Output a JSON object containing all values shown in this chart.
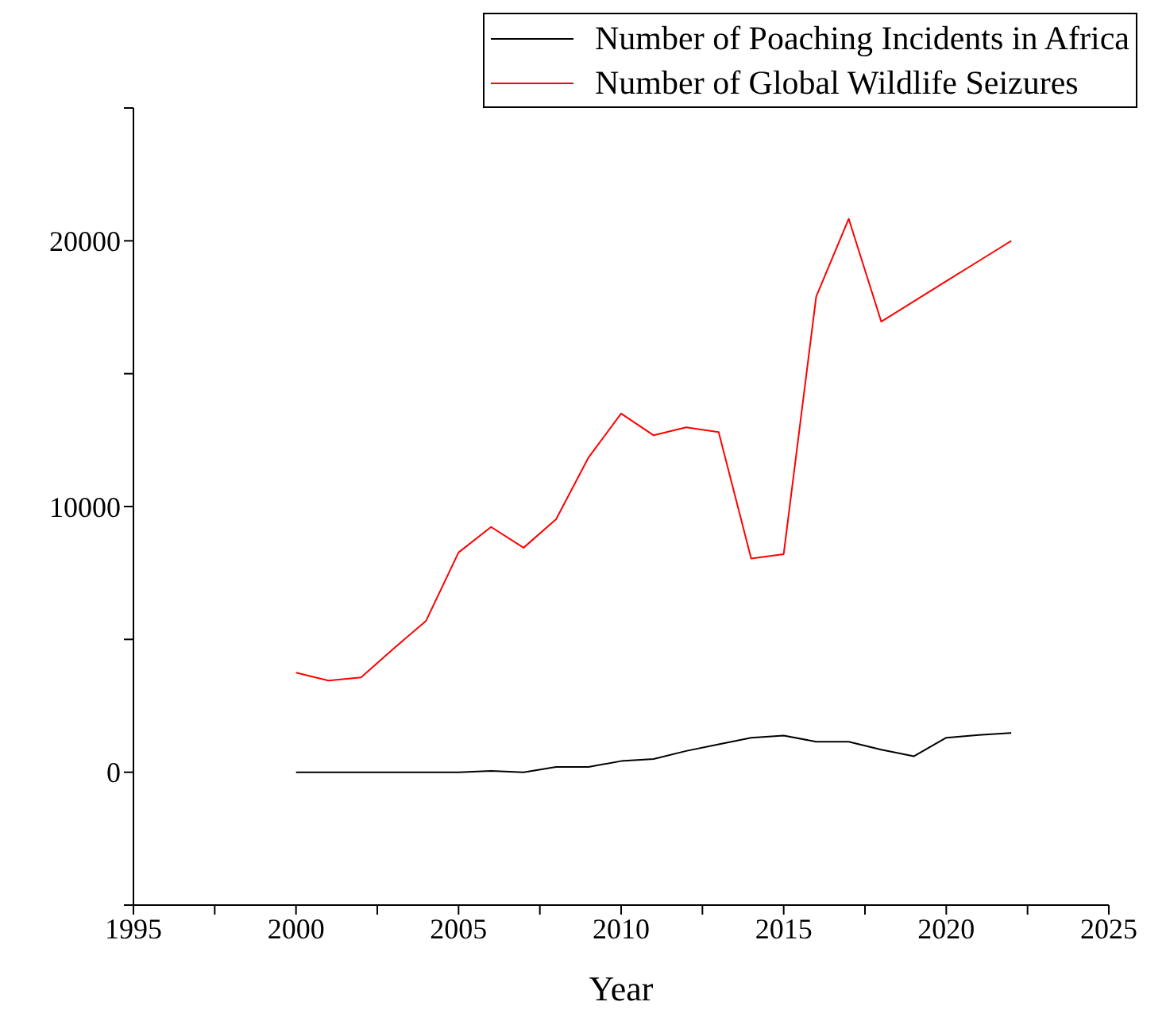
{
  "chart_data": {
    "type": "line",
    "xlabel": "Year",
    "x": [
      2000,
      2001,
      2002,
      2003,
      2004,
      2005,
      2006,
      2007,
      2008,
      2009,
      2010,
      2011,
      2012,
      2013,
      2014,
      2015,
      2016,
      2017,
      2018,
      2019,
      2020,
      2021,
      2022
    ],
    "series": [
      {
        "name": "Number of Poaching Incidents in Africa",
        "color": "#000000",
        "values": [
          0,
          0,
          0,
          0,
          0,
          0,
          50,
          0,
          200,
          200,
          420,
          500,
          800,
          1050,
          1300,
          1380,
          1150,
          1150,
          850,
          600,
          1300,
          1400,
          1480
        ]
      },
      {
        "name": "Number of Global Wildlife Seizures",
        "color": "#ff0000",
        "values": [
          3750,
          3450,
          3570,
          4650,
          5700,
          8270,
          9230,
          8450,
          9520,
          11850,
          13500,
          12680,
          12980,
          12800,
          8040,
          8210,
          17900,
          20830,
          16960,
          17720,
          18480,
          19240,
          20000
        ]
      }
    ],
    "xlim": [
      1995,
      2025
    ],
    "xticks": [
      1995,
      {
        "value": 1997.5,
        "label": null
      },
      2000,
      {
        "value": 2002.5,
        "label": null
      },
      2005,
      {
        "value": 2007.5,
        "label": null
      },
      2010,
      {
        "value": 2012.5,
        "label": null
      },
      2015,
      {
        "value": 2017.5,
        "label": null
      },
      2020,
      {
        "value": 2022.5,
        "label": null
      },
      2025
    ],
    "ylim": [
      -5000,
      25000
    ],
    "yticks": [
      {
        "value": -5000,
        "label": null
      },
      0,
      {
        "value": 5000,
        "label": null
      },
      10000,
      {
        "value": 15000,
        "label": null
      },
      20000,
      {
        "value": 25000,
        "label": null
      }
    ],
    "grid": false,
    "legend": "top right",
    "marker": "none",
    "line_style": "solid"
  }
}
